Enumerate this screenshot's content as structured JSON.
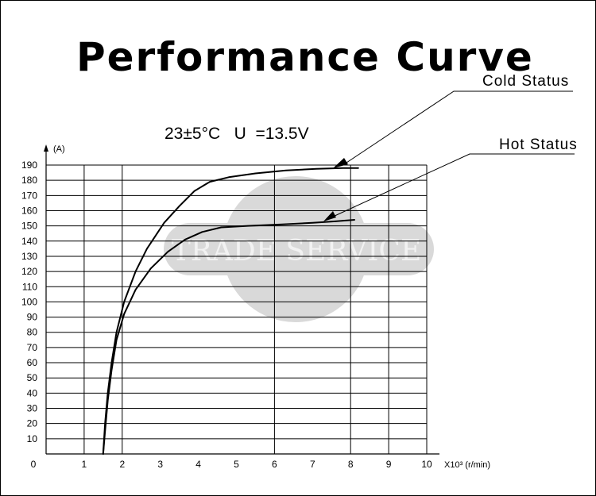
{
  "chart_data": {
    "type": "line",
    "title": "Performance Curve",
    "subtitle": "23±5°C   U  =13.5V",
    "ylabel": "(A)",
    "xlabel": "X10³ (r/min)",
    "xlim": [
      0,
      10
    ],
    "ylim": [
      0,
      190
    ],
    "x_ticks": [
      "0",
      "1",
      "2",
      "3",
      "4",
      "5",
      "6",
      "7",
      "8",
      "9",
      "10"
    ],
    "y_ticks": [
      "10",
      "20",
      "30",
      "40",
      "50",
      "60",
      "70",
      "80",
      "90",
      "100",
      "110",
      "120",
      "130",
      "140",
      "150",
      "160",
      "170",
      "180",
      "190"
    ],
    "grid": true,
    "series": [
      {
        "name": "Cold Status",
        "color": "#000000",
        "points": [
          [
            1.5,
            0
          ],
          [
            1.55,
            20
          ],
          [
            1.62,
            40
          ],
          [
            1.72,
            60
          ],
          [
            1.85,
            80
          ],
          [
            2.05,
            100
          ],
          [
            2.35,
            120
          ],
          [
            2.65,
            135
          ],
          [
            3.1,
            152
          ],
          [
            3.5,
            163
          ],
          [
            3.9,
            173
          ],
          [
            4.3,
            179
          ],
          [
            4.8,
            182
          ],
          [
            5.5,
            184.5
          ],
          [
            6.3,
            186.5
          ],
          [
            7.1,
            187.5
          ],
          [
            7.8,
            188
          ],
          [
            8.2,
            188
          ]
        ]
      },
      {
        "name": "Hot Status",
        "color": "#000000",
        "points": [
          [
            1.5,
            0
          ],
          [
            1.55,
            15
          ],
          [
            1.62,
            35
          ],
          [
            1.72,
            55
          ],
          [
            1.85,
            75
          ],
          [
            2.05,
            92
          ],
          [
            2.35,
            108
          ],
          [
            2.75,
            122
          ],
          [
            3.2,
            133
          ],
          [
            3.65,
            141
          ],
          [
            4.1,
            146
          ],
          [
            4.6,
            149
          ],
          [
            5.3,
            150
          ],
          [
            6.2,
            151
          ],
          [
            7.0,
            152
          ],
          [
            7.6,
            153
          ],
          [
            8.1,
            154
          ]
        ]
      }
    ],
    "watermark": "TRADE SERVICE"
  }
}
